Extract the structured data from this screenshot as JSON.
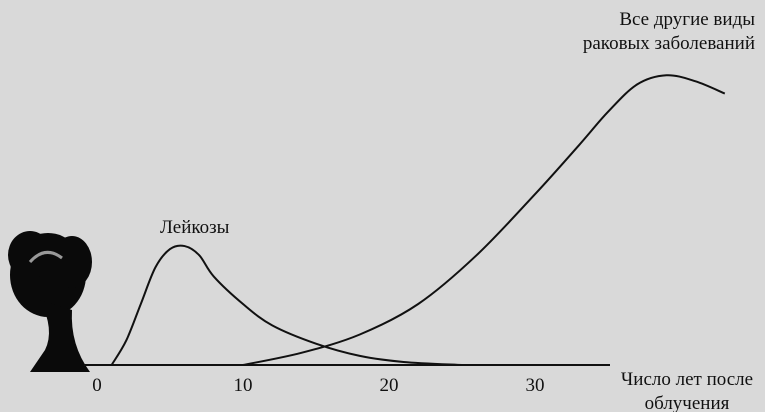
{
  "chart_data": {
    "type": "line",
    "x_label": "Число лет после облучения",
    "xlim": [
      -5,
      45
    ],
    "xticks": [
      0,
      10,
      20,
      30
    ],
    "ylim": [
      0,
      100
    ],
    "grid": false,
    "series": [
      {
        "name": "Лейкозы",
        "color": "#111111",
        "x": [
          1,
          2,
          3,
          4,
          5,
          6,
          7,
          8,
          10,
          12,
          15,
          18,
          21,
          25
        ],
        "values": [
          0,
          8,
          20,
          32,
          38,
          39,
          36,
          29,
          20,
          13,
          7,
          3,
          1,
          0
        ]
      },
      {
        "name": "Все другие виды раковых заболеваний",
        "color": "#111111",
        "x": [
          10,
          14,
          18,
          22,
          26,
          30,
          33,
          35,
          37,
          39,
          41,
          43
        ],
        "values": [
          0,
          4,
          10,
          20,
          36,
          56,
          72,
          83,
          92,
          95,
          93,
          89
        ]
      }
    ]
  }
}
